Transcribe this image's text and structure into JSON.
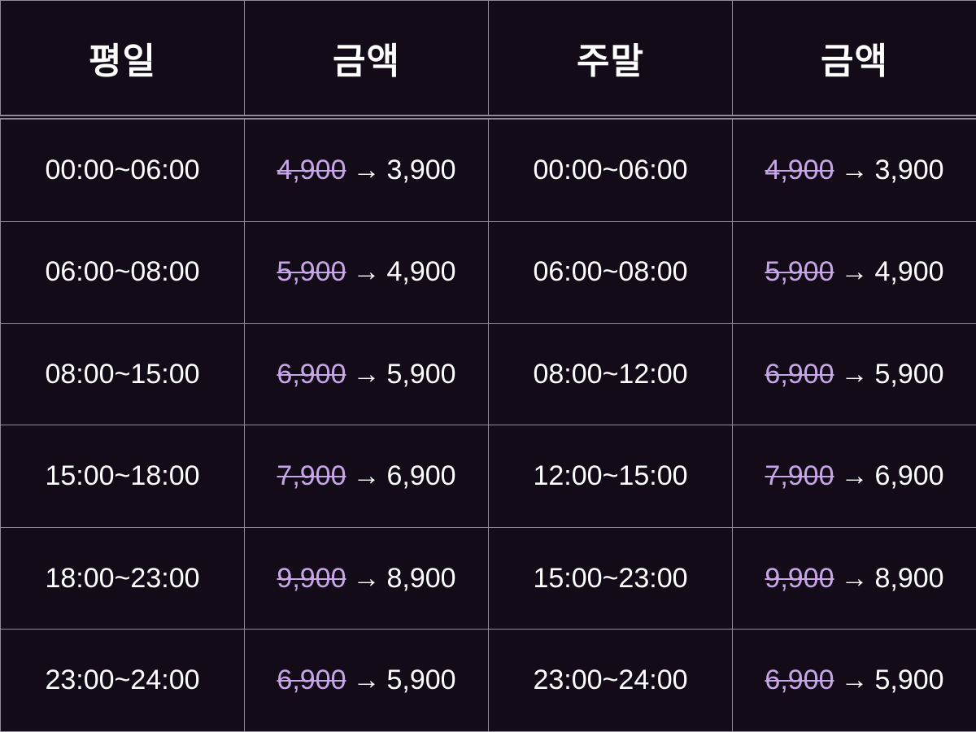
{
  "headers": {
    "weekday": "평일",
    "weekday_price": "금액",
    "weekend": "주말",
    "weekend_price": "금액"
  },
  "arrow_symbol": "→",
  "colors": {
    "background": "#130b18",
    "grid_line": "#8e8a96",
    "text": "#ffffff",
    "old_price": "#c7a6e8"
  },
  "rows": [
    {
      "weekday_time": "00:00~06:00",
      "weekday_old": "4,900",
      "weekday_new": "3,900",
      "weekend_time": "00:00~06:00",
      "weekend_old": "4,900",
      "weekend_new": "3,900"
    },
    {
      "weekday_time": "06:00~08:00",
      "weekday_old": "5,900",
      "weekday_new": "4,900",
      "weekend_time": "06:00~08:00",
      "weekend_old": "5,900",
      "weekend_new": "4,900"
    },
    {
      "weekday_time": "08:00~15:00",
      "weekday_old": "6,900",
      "weekday_new": "5,900",
      "weekend_time": "08:00~12:00",
      "weekend_old": "6,900",
      "weekend_new": "5,900"
    },
    {
      "weekday_time": "15:00~18:00",
      "weekday_old": "7,900",
      "weekday_new": "6,900",
      "weekend_time": "12:00~15:00",
      "weekend_old": "7,900",
      "weekend_new": "6,900"
    },
    {
      "weekday_time": "18:00~23:00",
      "weekday_old": "9,900",
      "weekday_new": "8,900",
      "weekend_time": "15:00~23:00",
      "weekend_old": "9,900",
      "weekend_new": "8,900"
    },
    {
      "weekday_time": "23:00~24:00",
      "weekday_old": "6,900",
      "weekday_new": "5,900",
      "weekend_time": "23:00~24:00",
      "weekend_old": "6,900",
      "weekend_new": "5,900"
    }
  ]
}
